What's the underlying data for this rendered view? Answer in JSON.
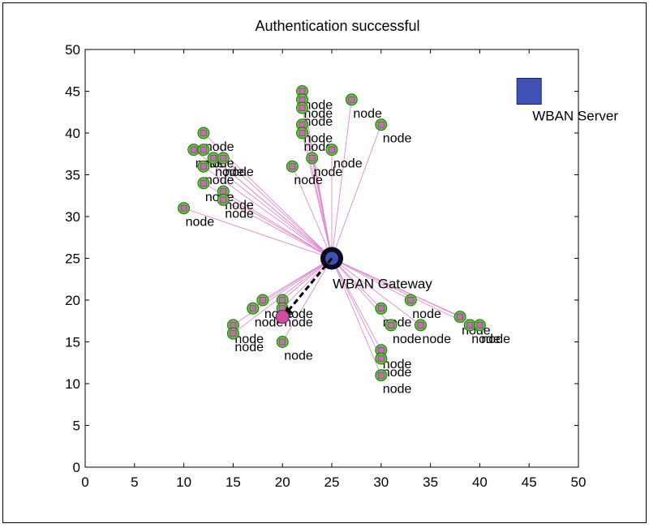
{
  "chart_data": {
    "type": "scatter",
    "title": "Authentication successful",
    "xlabel": "",
    "ylabel": "",
    "xlim": [
      0,
      50
    ],
    "ylim": [
      0,
      50
    ],
    "xticks": [
      0,
      5,
      10,
      15,
      20,
      25,
      30,
      35,
      40,
      45,
      50
    ],
    "yticks": [
      0,
      5,
      10,
      15,
      20,
      25,
      30,
      35,
      40,
      45,
      50
    ],
    "grid": false,
    "gateway": {
      "x": 25,
      "y": 25,
      "label": "WBAN Gateway",
      "color": "#3f51b5"
    },
    "server": {
      "x": 45,
      "y": 45,
      "label": "WBAN Server",
      "color": "#3f51b5"
    },
    "authenticating_node": {
      "x": 20,
      "y": 18,
      "color": "#cc4fa0"
    },
    "node_label": "node",
    "node_fill": "#5ec43b",
    "node_marker": "#c36eb0",
    "link_color": "#e08ad0",
    "nodes": [
      {
        "x": 22,
        "y": 45
      },
      {
        "x": 22,
        "y": 44
      },
      {
        "x": 22,
        "y": 43
      },
      {
        "x": 27,
        "y": 44
      },
      {
        "x": 22,
        "y": 41
      },
      {
        "x": 22,
        "y": 40
      },
      {
        "x": 30,
        "y": 41
      },
      {
        "x": 12,
        "y": 40
      },
      {
        "x": 11,
        "y": 38
      },
      {
        "x": 12,
        "y": 38
      },
      {
        "x": 13,
        "y": 37
      },
      {
        "x": 14,
        "y": 37
      },
      {
        "x": 12,
        "y": 36
      },
      {
        "x": 23,
        "y": 37
      },
      {
        "x": 25,
        "y": 38
      },
      {
        "x": 21,
        "y": 36
      },
      {
        "x": 12,
        "y": 34
      },
      {
        "x": 14,
        "y": 33
      },
      {
        "x": 14,
        "y": 32
      },
      {
        "x": 10,
        "y": 31
      },
      {
        "x": 20,
        "y": 20
      },
      {
        "x": 18,
        "y": 20
      },
      {
        "x": 17,
        "y": 19
      },
      {
        "x": 20,
        "y": 19
      },
      {
        "x": 15,
        "y": 17
      },
      {
        "x": 15,
        "y": 16
      },
      {
        "x": 20,
        "y": 15
      },
      {
        "x": 30,
        "y": 19
      },
      {
        "x": 33,
        "y": 20
      },
      {
        "x": 31,
        "y": 17
      },
      {
        "x": 34,
        "y": 17
      },
      {
        "x": 38,
        "y": 18
      },
      {
        "x": 39,
        "y": 17
      },
      {
        "x": 40,
        "y": 17
      },
      {
        "x": 30,
        "y": 14
      },
      {
        "x": 30,
        "y": 13
      },
      {
        "x": 30,
        "y": 11
      }
    ]
  }
}
